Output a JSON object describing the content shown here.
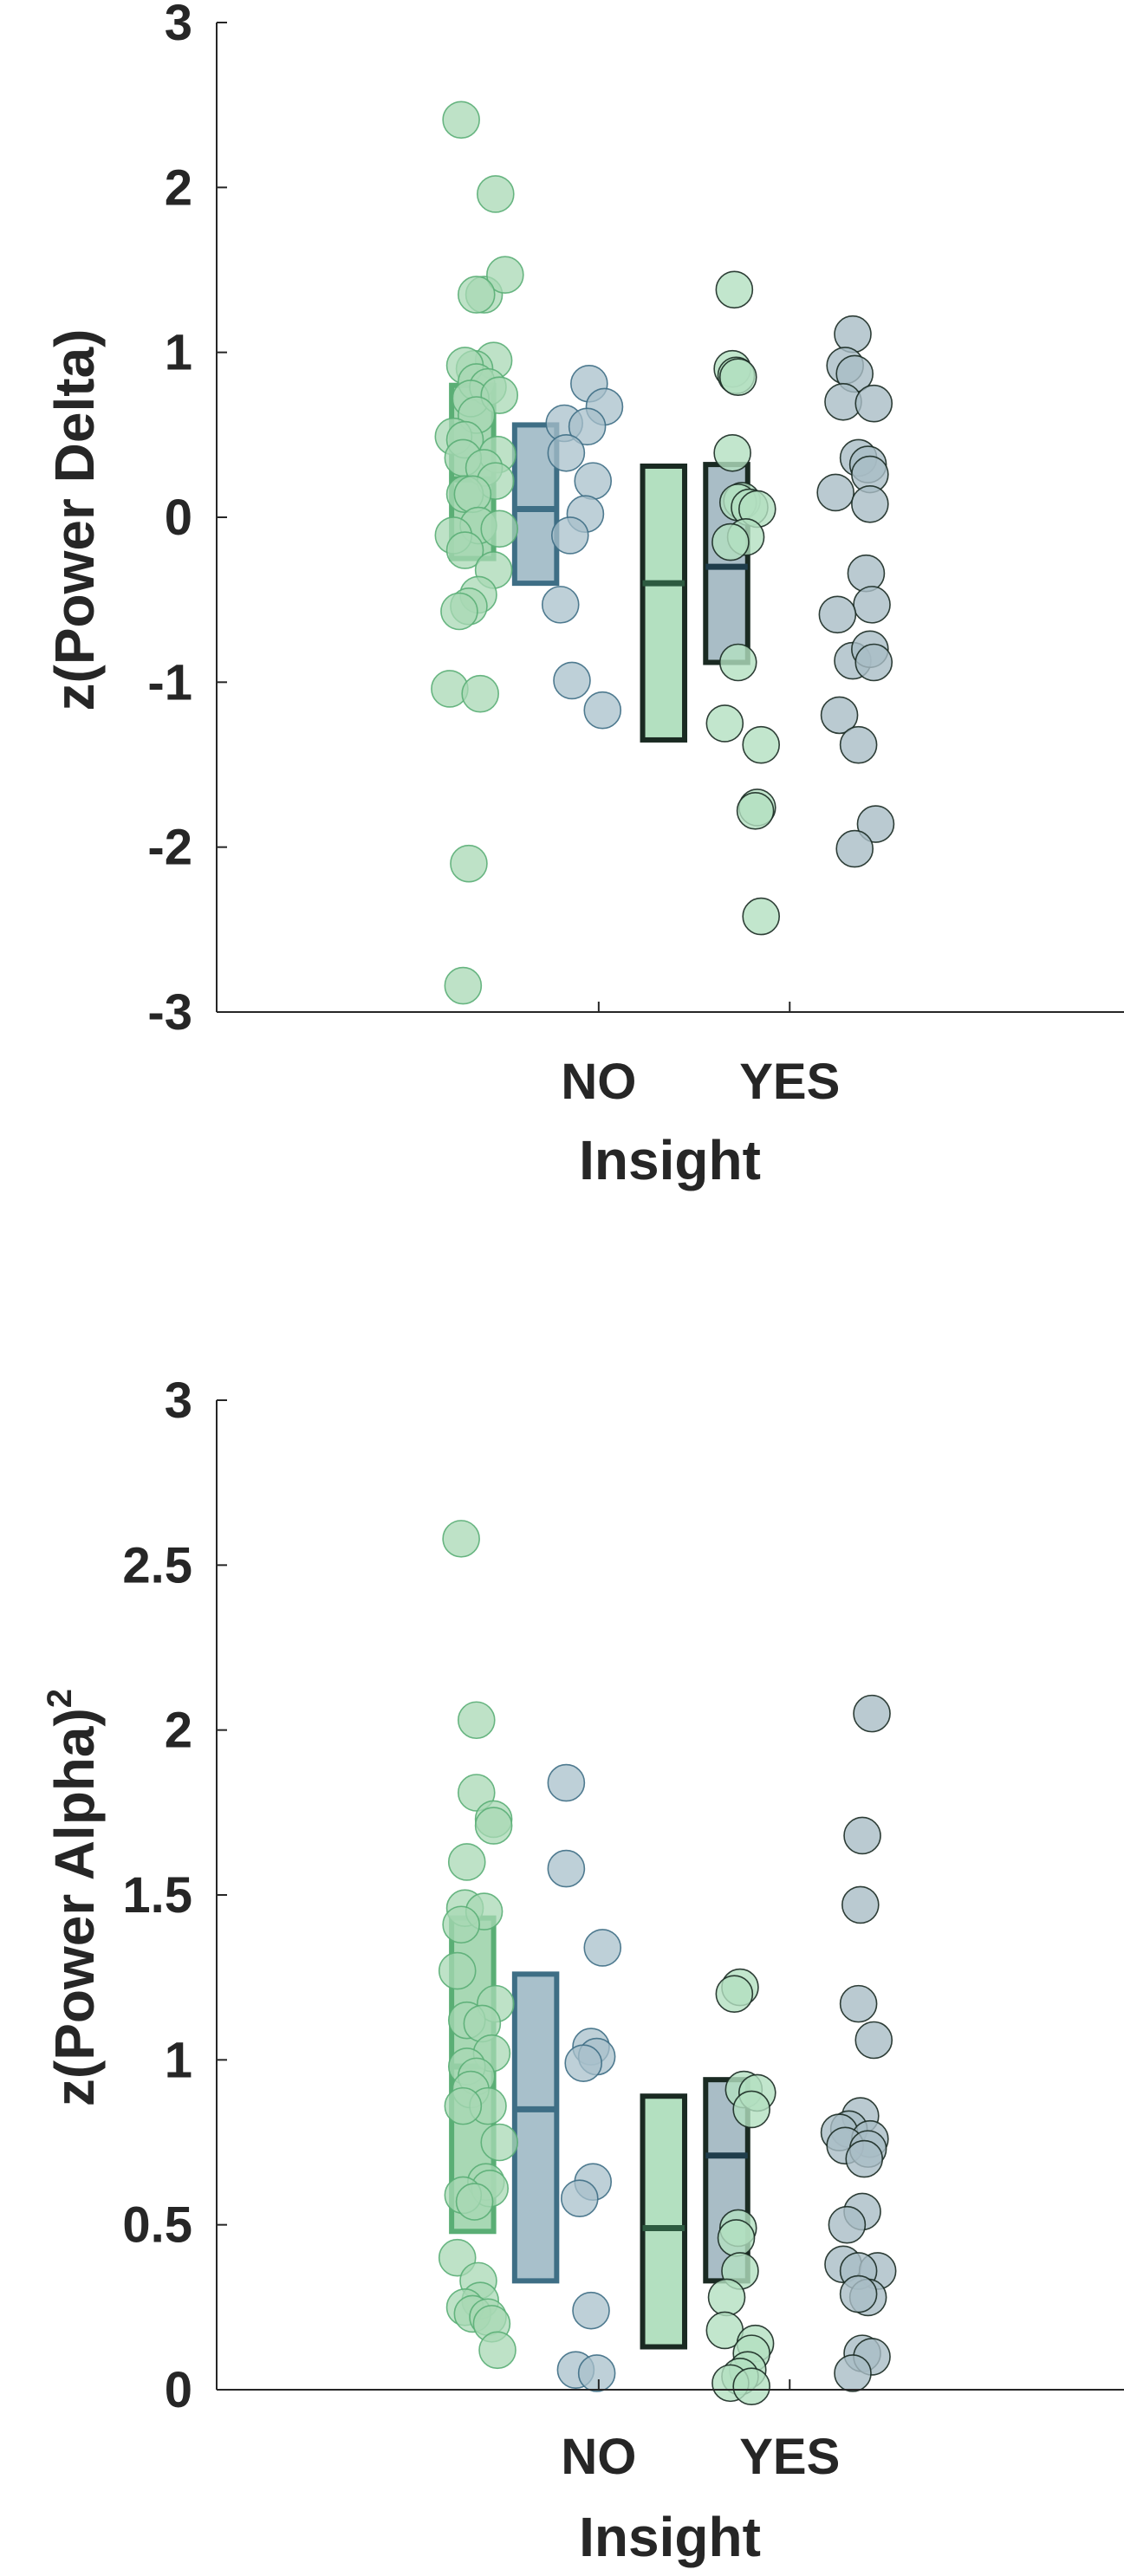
{
  "colors": {
    "no_green": "#5aae75",
    "no_green_fill": "#a8d8b4",
    "no_blue": "#3e6e85",
    "no_blue_fill": "#a8c0cb",
    "yes_green_fill": "#b3e0c0",
    "yes_blue_fill": "#a9bdc6",
    "yes_edge": "#1a2a22",
    "axis": "#262626"
  },
  "chart_data": [
    {
      "type": "scatter",
      "xlabel": "Insight",
      "ylabel": "z(Power Delta)",
      "categories": [
        "NO",
        "YES"
      ],
      "ylim": [
        -3,
        3
      ],
      "yticks": [
        -3,
        -2,
        -1,
        0,
        1,
        2,
        3
      ],
      "ytick_labels": [
        "-3",
        "-2",
        "-1",
        "0",
        "1",
        "2",
        "3"
      ],
      "grid": false,
      "series": [
        {
          "group": "NO",
          "subgroup": "green",
          "box": {
            "low": -0.25,
            "median": 0.23,
            "high": 0.8
          },
          "points": [
            {
              "x": -1.72,
              "y": 2.41
            },
            {
              "x": -1.54,
              "y": 1.96
            },
            {
              "x": -1.6,
              "y": 1.35
            },
            {
              "x": -1.49,
              "y": 1.47
            },
            {
              "x": -1.64,
              "y": 1.35
            },
            {
              "x": -1.55,
              "y": 0.95
            },
            {
              "x": -1.65,
              "y": 0.9
            },
            {
              "x": -1.7,
              "y": 0.92
            },
            {
              "x": -1.64,
              "y": 0.82
            },
            {
              "x": -1.58,
              "y": 0.79
            },
            {
              "x": -1.67,
              "y": 0.72
            },
            {
              "x": -1.52,
              "y": 0.74
            },
            {
              "x": -1.64,
              "y": 0.62
            },
            {
              "x": -1.76,
              "y": 0.49
            },
            {
              "x": -1.7,
              "y": 0.47
            },
            {
              "x": -1.53,
              "y": 0.38
            },
            {
              "x": -1.71,
              "y": 0.36
            },
            {
              "x": -1.6,
              "y": 0.3
            },
            {
              "x": -1.54,
              "y": 0.22
            },
            {
              "x": -1.7,
              "y": 0.14
            },
            {
              "x": -1.66,
              "y": 0.14
            },
            {
              "x": -1.63,
              "y": -0.05
            },
            {
              "x": -1.52,
              "y": -0.07
            },
            {
              "x": -1.76,
              "y": -0.11
            },
            {
              "x": -1.7,
              "y": -0.2
            },
            {
              "x": -1.55,
              "y": -0.32
            },
            {
              "x": -1.63,
              "y": -0.47
            },
            {
              "x": -1.68,
              "y": -0.54
            },
            {
              "x": -1.73,
              "y": -0.57
            },
            {
              "x": -1.78,
              "y": -1.04
            },
            {
              "x": -1.62,
              "y": -1.07
            },
            {
              "x": -1.68,
              "y": -2.1
            },
            {
              "x": -1.71,
              "y": -2.84
            }
          ]
        },
        {
          "group": "NO",
          "subgroup": "blue",
          "box": {
            "low": -0.4,
            "median": 0.05,
            "high": 0.56
          },
          "points": [
            {
              "x": -1.05,
              "y": 0.81
            },
            {
              "x": -0.97,
              "y": 0.67
            },
            {
              "x": -1.18,
              "y": 0.57
            },
            {
              "x": -1.06,
              "y": 0.55
            },
            {
              "x": -1.17,
              "y": 0.39
            },
            {
              "x": -1.03,
              "y": 0.22
            },
            {
              "x": -1.07,
              "y": 0.02
            },
            {
              "x": -1.15,
              "y": -0.11
            },
            {
              "x": -1.2,
              "y": -0.53
            },
            {
              "x": -1.14,
              "y": -0.99
            },
            {
              "x": -0.98,
              "y": -1.17
            }
          ]
        },
        {
          "group": "YES",
          "subgroup": "green",
          "box": {
            "low": -1.35,
            "median": -0.4,
            "high": 0.31
          },
          "points": [
            {
              "x": -0.29,
              "y": 1.38
            },
            {
              "x": -0.3,
              "y": 0.9
            },
            {
              "x": -0.28,
              "y": 0.86
            },
            {
              "x": -0.27,
              "y": 0.85
            },
            {
              "x": -0.3,
              "y": 0.39
            },
            {
              "x": -0.25,
              "y": 0.1
            },
            {
              "x": -0.27,
              "y": 0.09
            },
            {
              "x": -0.21,
              "y": 0.06
            },
            {
              "x": -0.17,
              "y": 0.05
            },
            {
              "x": -0.23,
              "y": -0.12
            },
            {
              "x": -0.31,
              "y": -0.15
            },
            {
              "x": -0.27,
              "y": -0.88
            },
            {
              "x": -0.34,
              "y": -1.25
            },
            {
              "x": -0.15,
              "y": -1.38
            },
            {
              "x": -0.17,
              "y": -1.76
            },
            {
              "x": -0.18,
              "y": -1.78
            },
            {
              "x": -0.15,
              "y": -2.42
            }
          ]
        },
        {
          "group": "YES",
          "subgroup": "blue",
          "box": {
            "low": -0.88,
            "median": -0.3,
            "high": 0.32
          },
          "points": [
            {
              "x": 0.33,
              "y": 1.11
            },
            {
              "x": 0.29,
              "y": 0.92
            },
            {
              "x": 0.34,
              "y": 0.87
            },
            {
              "x": 0.28,
              "y": 0.7
            },
            {
              "x": 0.44,
              "y": 0.69
            },
            {
              "x": 0.36,
              "y": 0.36
            },
            {
              "x": 0.41,
              "y": 0.32
            },
            {
              "x": 0.42,
              "y": 0.26
            },
            {
              "x": 0.24,
              "y": 0.15
            },
            {
              "x": 0.42,
              "y": 0.08
            },
            {
              "x": 0.4,
              "y": -0.34
            },
            {
              "x": 0.43,
              "y": -0.53
            },
            {
              "x": 0.25,
              "y": -0.59
            },
            {
              "x": 0.33,
              "y": -0.87
            },
            {
              "x": 0.42,
              "y": -0.8
            },
            {
              "x": 0.44,
              "y": -0.88
            },
            {
              "x": 0.26,
              "y": -1.2
            },
            {
              "x": 0.36,
              "y": -1.38
            },
            {
              "x": 0.45,
              "y": -1.86
            },
            {
              "x": 0.34,
              "y": -2.01
            }
          ]
        }
      ]
    },
    {
      "type": "scatter",
      "xlabel": "Insight",
      "ylabel": "z(Power Alpha)",
      "ylabel_superscript": "2",
      "categories": [
        "NO",
        "YES"
      ],
      "ylim": [
        0,
        3
      ],
      "yticks": [
        0,
        0.5,
        1,
        1.5,
        2,
        2.5,
        3
      ],
      "ytick_labels": [
        "0",
        "0.5",
        "1",
        "1.5",
        "2",
        "2.5",
        "3"
      ],
      "grid": false,
      "series": [
        {
          "group": "NO",
          "subgroup": "green",
          "box": {
            "low": 0.48,
            "median": 0.98,
            "high": 1.43
          },
          "points": [
            {
              "x": -1.72,
              "y": 2.58
            },
            {
              "x": -1.64,
              "y": 2.03
            },
            {
              "x": -1.64,
              "y": 1.81
            },
            {
              "x": -1.55,
              "y": 1.73
            },
            {
              "x": -1.55,
              "y": 1.71
            },
            {
              "x": -1.69,
              "y": 1.6
            },
            {
              "x": -1.7,
              "y": 1.46
            },
            {
              "x": -1.6,
              "y": 1.45
            },
            {
              "x": -1.72,
              "y": 1.41
            },
            {
              "x": -1.74,
              "y": 1.27
            },
            {
              "x": -1.54,
              "y": 1.17
            },
            {
              "x": -1.69,
              "y": 1.12
            },
            {
              "x": -1.61,
              "y": 1.11
            },
            {
              "x": -1.56,
              "y": 1.02
            },
            {
              "x": -1.69,
              "y": 0.98
            },
            {
              "x": -1.64,
              "y": 0.95
            },
            {
              "x": -1.67,
              "y": 0.91
            },
            {
              "x": -1.58,
              "y": 0.86
            },
            {
              "x": -1.71,
              "y": 0.86
            },
            {
              "x": -1.52,
              "y": 0.75
            },
            {
              "x": -1.59,
              "y": 0.63
            },
            {
              "x": -1.57,
              "y": 0.61
            },
            {
              "x": -1.71,
              "y": 0.59
            },
            {
              "x": -1.65,
              "y": 0.57
            },
            {
              "x": -1.74,
              "y": 0.4
            },
            {
              "x": -1.63,
              "y": 0.33
            },
            {
              "x": -1.62,
              "y": 0.27
            },
            {
              "x": -1.7,
              "y": 0.25
            },
            {
              "x": -1.66,
              "y": 0.23
            },
            {
              "x": -1.58,
              "y": 0.22
            },
            {
              "x": -1.56,
              "y": 0.2
            },
            {
              "x": -1.53,
              "y": 0.12
            }
          ]
        },
        {
          "group": "NO",
          "subgroup": "blue",
          "box": {
            "low": 0.33,
            "median": 0.85,
            "high": 1.26
          },
          "points": [
            {
              "x": -1.17,
              "y": 1.84
            },
            {
              "x": -1.17,
              "y": 1.58
            },
            {
              "x": -0.98,
              "y": 1.34
            },
            {
              "x": -1.04,
              "y": 1.04
            },
            {
              "x": -1.01,
              "y": 1.01
            },
            {
              "x": -1.08,
              "y": 0.99
            },
            {
              "x": -1.03,
              "y": 0.63
            },
            {
              "x": -1.1,
              "y": 0.58
            },
            {
              "x": -1.04,
              "y": 0.24
            },
            {
              "x": -1.12,
              "y": 0.06
            },
            {
              "x": -1.01,
              "y": 0.05
            }
          ]
        },
        {
          "group": "YES",
          "subgroup": "green",
          "box": {
            "low": 0.13,
            "median": 0.49,
            "high": 0.89
          },
          "points": [
            {
              "x": -0.26,
              "y": 1.22
            },
            {
              "x": -0.29,
              "y": 1.2
            },
            {
              "x": -0.24,
              "y": 0.91
            },
            {
              "x": -0.17,
              "y": 0.9
            },
            {
              "x": -0.2,
              "y": 0.85
            },
            {
              "x": -0.27,
              "y": 0.49
            },
            {
              "x": -0.28,
              "y": 0.46
            },
            {
              "x": -0.26,
              "y": 0.36
            },
            {
              "x": -0.33,
              "y": 0.28
            },
            {
              "x": -0.34,
              "y": 0.18
            },
            {
              "x": -0.18,
              "y": 0.14
            },
            {
              "x": -0.2,
              "y": 0.11
            },
            {
              "x": -0.22,
              "y": 0.06
            },
            {
              "x": -0.26,
              "y": 0.04
            },
            {
              "x": -0.31,
              "y": 0.02
            },
            {
              "x": -0.2,
              "y": 0.01
            }
          ]
        },
        {
          "group": "YES",
          "subgroup": "blue",
          "box": {
            "low": 0.33,
            "median": 0.71,
            "high": 0.94
          },
          "points": [
            {
              "x": 0.43,
              "y": 2.05
            },
            {
              "x": 0.38,
              "y": 1.68
            },
            {
              "x": 0.37,
              "y": 1.47
            },
            {
              "x": 0.36,
              "y": 1.17
            },
            {
              "x": 0.44,
              "y": 1.06
            },
            {
              "x": 0.37,
              "y": 0.83
            },
            {
              "x": 0.31,
              "y": 0.79
            },
            {
              "x": 0.26,
              "y": 0.78
            },
            {
              "x": 0.42,
              "y": 0.76
            },
            {
              "x": 0.29,
              "y": 0.74
            },
            {
              "x": 0.41,
              "y": 0.73
            },
            {
              "x": 0.39,
              "y": 0.7
            },
            {
              "x": 0.38,
              "y": 0.54
            },
            {
              "x": 0.3,
              "y": 0.5
            },
            {
              "x": 0.28,
              "y": 0.38
            },
            {
              "x": 0.46,
              "y": 0.36
            },
            {
              "x": 0.36,
              "y": 0.36
            },
            {
              "x": 0.41,
              "y": 0.28
            },
            {
              "x": 0.36,
              "y": 0.29
            },
            {
              "x": 0.38,
              "y": 0.11
            },
            {
              "x": 0.43,
              "y": 0.1
            },
            {
              "x": 0.33,
              "y": 0.05
            }
          ]
        }
      ]
    }
  ]
}
